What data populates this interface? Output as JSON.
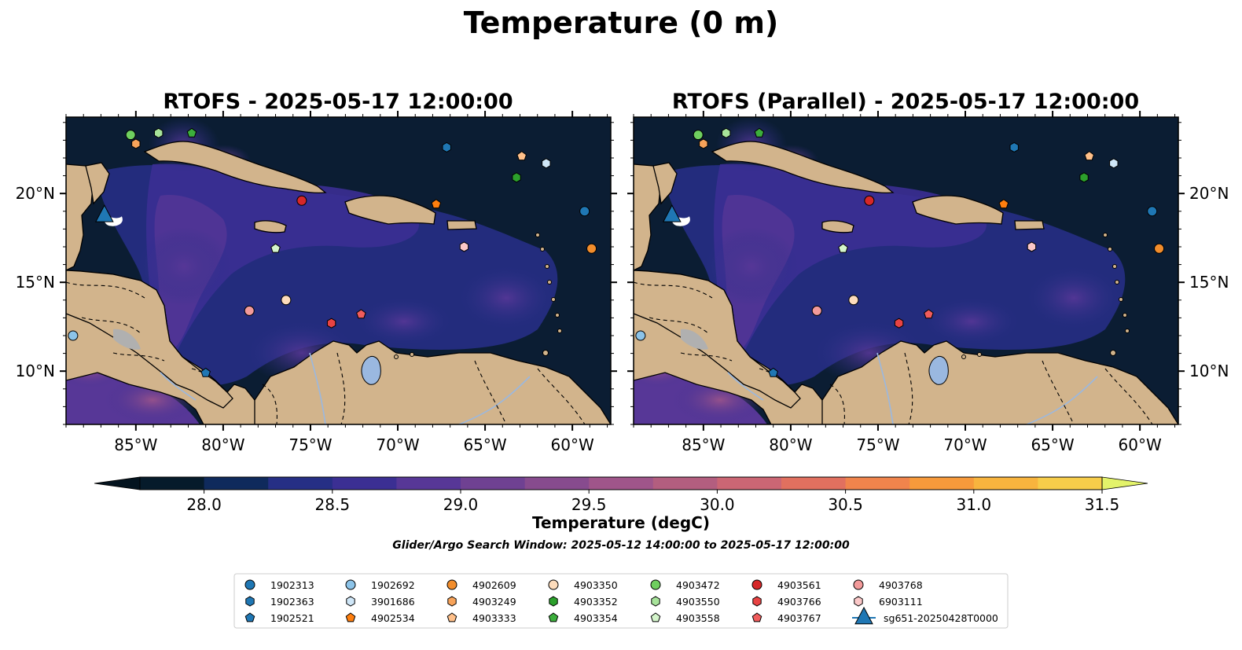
{
  "figure": {
    "title": "Temperature (0 m)",
    "search_window": "Glider/Argo Search Window: 2025-05-12 14:00:00 to 2025-05-17 12:00:00"
  },
  "map": {
    "lon_range": [
      -89.0,
      -57.8
    ],
    "lat_range": [
      7.0,
      24.3
    ],
    "ocean_color": "#0b1d33",
    "land_color": "#d2b48c",
    "lake_color": "#9ab8e0",
    "lon_ticks": [
      {
        "value": -85,
        "label": "85°W"
      },
      {
        "value": -80,
        "label": "80°W"
      },
      {
        "value": -75,
        "label": "75°W"
      },
      {
        "value": -70,
        "label": "70°W"
      },
      {
        "value": -65,
        "label": "65°W"
      },
      {
        "value": -60,
        "label": "60°W"
      }
    ],
    "lat_ticks": [
      {
        "value": 10,
        "label": "10°N"
      },
      {
        "value": 15,
        "label": "15°N"
      },
      {
        "value": 20,
        "label": "20°N"
      }
    ]
  },
  "panels": [
    {
      "title": "RTOFS - 2025-05-17 12:00:00",
      "lat_labels_side": "left"
    },
    {
      "title": "RTOFS (Parallel) - 2025-05-17 12:00:00",
      "lat_labels_side": "right"
    }
  ],
  "colorbar": {
    "label": "Temperature (degC)",
    "min": 27.75,
    "max": 31.5,
    "step": 0.25,
    "extend": "both",
    "ticks": [
      "28.0",
      "28.5",
      "29.0",
      "29.5",
      "30.0",
      "30.5",
      "31.0",
      "31.5"
    ],
    "tick_values": [
      28.0,
      28.5,
      29.0,
      29.5,
      30.0,
      30.5,
      31.0,
      31.5
    ],
    "colors": [
      "#061b2b",
      "#0f2a5c",
      "#262f85",
      "#3b2f93",
      "#573797",
      "#6f4192",
      "#874b8e",
      "#9f558a",
      "#b35e7f",
      "#cb6674",
      "#e1705f",
      "#f0844c",
      "#f79a3b",
      "#f8b43e",
      "#f7cd4a"
    ],
    "under_color": "#04141f",
    "over_color": "#e3f36a"
  },
  "legend": {
    "entries": [
      {
        "label": "1902313",
        "marker": "circle",
        "color": "#1f77b4"
      },
      {
        "label": "1902363",
        "marker": "hexagon",
        "color": "#1f77b4"
      },
      {
        "label": "1902521",
        "marker": "pentagon",
        "color": "#1f77b4"
      },
      {
        "label": "1902692",
        "marker": "circle",
        "color": "#8cc3e8"
      },
      {
        "label": "3901686",
        "marker": "hexagon",
        "color": "#cfe6f7"
      },
      {
        "label": "4902534",
        "marker": "pentagon",
        "color": "#ff7f0e"
      },
      {
        "label": "4902609",
        "marker": "circle",
        "color": "#f28d2c"
      },
      {
        "label": "4903249",
        "marker": "hexagon",
        "color": "#f7a35a"
      },
      {
        "label": "4903333",
        "marker": "pentagon",
        "color": "#ffc08a"
      },
      {
        "label": "4903350",
        "marker": "circle",
        "color": "#fddcbc"
      },
      {
        "label": "4903352",
        "marker": "hexagon",
        "color": "#2ca02c"
      },
      {
        "label": "4903354",
        "marker": "pentagon",
        "color": "#3cae3c"
      },
      {
        "label": "4903472",
        "marker": "circle",
        "color": "#6fcf5f"
      },
      {
        "label": "4903550",
        "marker": "hexagon",
        "color": "#a7e39a"
      },
      {
        "label": "4903558",
        "marker": "pentagon",
        "color": "#d4f5cb"
      },
      {
        "label": "4903561",
        "marker": "circle",
        "color": "#d62728"
      },
      {
        "label": "4903766",
        "marker": "hexagon",
        "color": "#e84343"
      },
      {
        "label": "4903767",
        "marker": "pentagon",
        "color": "#f05c5c"
      },
      {
        "label": "4903768",
        "marker": "circle",
        "color": "#f29a9a"
      },
      {
        "label": "6903111",
        "marker": "hexagon",
        "color": "#fbc8c8"
      },
      {
        "label": "sg651-20250428T0000",
        "marker": "triangle",
        "color": "#1f77b4"
      }
    ]
  },
  "platforms": [
    {
      "id": "1902313",
      "lon": -59.3,
      "lat": 19.0
    },
    {
      "id": "1902363",
      "lon": -67.2,
      "lat": 22.6
    },
    {
      "id": "1902521",
      "lon": -81.0,
      "lat": 9.9
    },
    {
      "id": "1902692",
      "lon": -88.6,
      "lat": 12.0
    },
    {
      "id": "3901686",
      "lon": -61.5,
      "lat": 21.7
    },
    {
      "id": "4902534",
      "lon": -67.8,
      "lat": 19.4
    },
    {
      "id": "4902609",
      "lon": -58.9,
      "lat": 16.9
    },
    {
      "id": "4903249",
      "lon": -85.0,
      "lat": 22.8
    },
    {
      "id": "4903333",
      "lon": -62.9,
      "lat": 22.1
    },
    {
      "id": "4903350",
      "lon": -76.4,
      "lat": 14.0
    },
    {
      "id": "4903352",
      "lon": -63.2,
      "lat": 20.9
    },
    {
      "id": "4903354",
      "lon": -81.8,
      "lat": 23.4
    },
    {
      "id": "4903472",
      "lon": -85.3,
      "lat": 23.3
    },
    {
      "id": "4903550",
      "lon": -83.7,
      "lat": 23.4
    },
    {
      "id": "4903558",
      "lon": -77.0,
      "lat": 16.9
    },
    {
      "id": "4903561",
      "lon": -75.5,
      "lat": 19.6
    },
    {
      "id": "4903766",
      "lon": -73.8,
      "lat": 12.7
    },
    {
      "id": "4903767",
      "lon": -72.1,
      "lat": 13.2
    },
    {
      "id": "4903768",
      "lon": -78.5,
      "lat": 13.4
    },
    {
      "id": "6903111",
      "lon": -66.2,
      "lat": 17.0
    },
    {
      "id": "sg651-20250428T0000",
      "lon": -86.8,
      "lat": 18.8
    }
  ]
}
